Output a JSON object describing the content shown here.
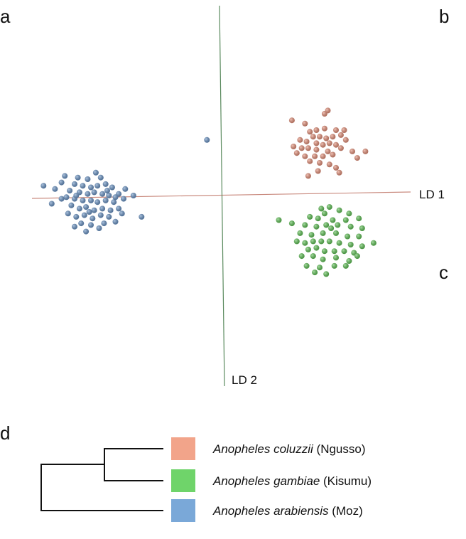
{
  "panel_labels": {
    "a": "a",
    "b": "b",
    "c": "c",
    "d": "d"
  },
  "chart_data": [
    {
      "type": "scatter",
      "xlabel": "LD 1",
      "ylabel": "LD 2",
      "xlim": [
        -11,
        11.5
      ],
      "ylim": [
        -11,
        11.5
      ],
      "grid": false,
      "axis_colors": {
        "ld1": "#c98a7e",
        "ld2": "#5a8a5e"
      },
      "series": [
        {
          "color": "#e8917a",
          "points": [
            [
              5.4,
              3.9
            ],
            [
              5.8,
              4.0
            ],
            [
              6.3,
              4.1
            ],
            [
              7.0,
              4.0
            ],
            [
              7.5,
              4.0
            ],
            [
              5.6,
              3.6
            ],
            [
              6.0,
              3.6
            ],
            [
              6.4,
              3.5
            ],
            [
              6.8,
              3.6
            ],
            [
              7.3,
              3.7
            ],
            [
              4.8,
              3.4
            ],
            [
              5.2,
              3.3
            ],
            [
              5.8,
              3.2
            ],
            [
              6.2,
              3.1
            ],
            [
              6.6,
              3.2
            ],
            [
              7.0,
              3.1
            ],
            [
              4.4,
              3.0
            ],
            [
              4.9,
              2.9
            ],
            [
              5.3,
              2.9
            ],
            [
              5.8,
              2.8
            ],
            [
              6.5,
              2.7
            ],
            [
              7.3,
              2.9
            ],
            [
              4.6,
              2.6
            ],
            [
              5.1,
              2.4
            ],
            [
              5.7,
              2.4
            ],
            [
              6.2,
              2.4
            ],
            [
              6.8,
              2.5
            ],
            [
              5.4,
              2.1
            ],
            [
              6.0,
              2.0
            ],
            [
              6.6,
              1.9
            ],
            [
              7.0,
              1.7
            ],
            [
              8.0,
              2.7
            ],
            [
              8.8,
              2.7
            ],
            [
              5.9,
              1.5
            ],
            [
              6.3,
              5.0
            ],
            [
              5.1,
              4.4
            ],
            [
              7.2,
              1.4
            ],
            [
              4.3,
              4.6
            ],
            [
              6.5,
              5.2
            ],
            [
              7.6,
              3.4
            ],
            [
              8.3,
              2.3
            ],
            [
              5.3,
              1.2
            ]
          ]
        },
        {
          "color": "#5fc455",
          "points": [
            [
              6.1,
              -0.8
            ],
            [
              6.6,
              -0.7
            ],
            [
              6.3,
              -1.1
            ],
            [
              7.2,
              -0.9
            ],
            [
              7.8,
              -1.1
            ],
            [
              5.4,
              -1.3
            ],
            [
              5.9,
              -1.4
            ],
            [
              6.8,
              -1.5
            ],
            [
              7.6,
              -1.5
            ],
            [
              8.4,
              -1.4
            ],
            [
              4.3,
              -1.7
            ],
            [
              5.1,
              -1.8
            ],
            [
              5.8,
              -1.9
            ],
            [
              6.4,
              -1.8
            ],
            [
              7.1,
              -1.8
            ],
            [
              7.9,
              -1.9
            ],
            [
              8.6,
              -2.0
            ],
            [
              4.8,
              -2.3
            ],
            [
              5.5,
              -2.4
            ],
            [
              6.2,
              -2.3
            ],
            [
              7.0,
              -2.3
            ],
            [
              7.7,
              -2.5
            ],
            [
              8.4,
              -2.5
            ],
            [
              4.6,
              -2.8
            ],
            [
              5.1,
              -2.9
            ],
            [
              5.6,
              -2.8
            ],
            [
              6.1,
              -2.8
            ],
            [
              6.6,
              -2.8
            ],
            [
              7.2,
              -2.9
            ],
            [
              7.9,
              -3.0
            ],
            [
              9.3,
              -2.9
            ],
            [
              5.3,
              -3.3
            ],
            [
              5.8,
              -3.2
            ],
            [
              6.3,
              -3.4
            ],
            [
              6.9,
              -3.4
            ],
            [
              7.5,
              -3.4
            ],
            [
              8.1,
              -3.5
            ],
            [
              4.9,
              -3.7
            ],
            [
              5.6,
              -3.7
            ],
            [
              6.2,
              -3.9
            ],
            [
              7.0,
              -3.8
            ],
            [
              7.8,
              -4.0
            ],
            [
              8.3,
              -3.7
            ],
            [
              5.2,
              -4.3
            ],
            [
              6.0,
              -4.4
            ],
            [
              6.9,
              -4.3
            ],
            [
              7.6,
              -4.3
            ],
            [
              6.4,
              -4.8
            ],
            [
              5.7,
              -4.7
            ],
            [
              3.5,
              -1.5
            ],
            [
              8.6,
              -3.1
            ],
            [
              6.7,
              -2.0
            ]
          ]
        },
        {
          "color": "#6a95c8",
          "points": [
            [
              -9.6,
              1.2
            ],
            [
              -8.8,
              1.1
            ],
            [
              -8.2,
              1.0
            ],
            [
              -7.4,
              1.1
            ],
            [
              -9.0,
              0.7
            ],
            [
              -8.5,
              0.6
            ],
            [
              -8.0,
              0.5
            ],
            [
              -7.6,
              0.6
            ],
            [
              -7.1,
              0.7
            ],
            [
              -6.7,
              0.5
            ],
            [
              -9.3,
              0.3
            ],
            [
              -8.7,
              0.2
            ],
            [
              -8.2,
              0.1
            ],
            [
              -7.8,
              0.2
            ],
            [
              -7.3,
              0.1
            ],
            [
              -6.9,
              0.0
            ],
            [
              -6.3,
              0.1
            ],
            [
              -10.2,
              0.4
            ],
            [
              -9.5,
              -0.1
            ],
            [
              -9.0,
              -0.2
            ],
            [
              -8.5,
              -0.3
            ],
            [
              -8.0,
              -0.3
            ],
            [
              -7.6,
              -0.4
            ],
            [
              -7.1,
              -0.3
            ],
            [
              -6.6,
              -0.4
            ],
            [
              -6.0,
              -0.2
            ],
            [
              -5.4,
              0.0
            ],
            [
              -10.4,
              -0.5
            ],
            [
              -9.2,
              -0.6
            ],
            [
              -8.7,
              -0.8
            ],
            [
              -8.3,
              -0.7
            ],
            [
              -7.8,
              -0.9
            ],
            [
              -7.3,
              -0.8
            ],
            [
              -6.8,
              -0.9
            ],
            [
              -6.3,
              -0.8
            ],
            [
              -9.4,
              -1.1
            ],
            [
              -8.9,
              -1.3
            ],
            [
              -8.4,
              -1.2
            ],
            [
              -7.9,
              -1.4
            ],
            [
              -7.4,
              -1.2
            ],
            [
              -6.9,
              -1.3
            ],
            [
              -8.6,
              -1.7
            ],
            [
              -8.0,
              -1.8
            ],
            [
              -7.2,
              -1.7
            ],
            [
              -6.5,
              -1.6
            ],
            [
              -10.9,
              0.6
            ],
            [
              -9.8,
              0.8
            ],
            [
              -7.7,
              1.4
            ],
            [
              -5.9,
              0.4
            ],
            [
              -6.1,
              -1.1
            ],
            [
              -8.3,
              -2.2
            ],
            [
              -9.0,
              -1.9
            ],
            [
              -7.5,
              -2.0
            ],
            [
              -4.9,
              -1.3
            ],
            [
              -0.9,
              3.4
            ],
            [
              -8.9,
              0.0
            ],
            [
              -7.0,
              0.3
            ],
            [
              -8.1,
              -1.0
            ],
            [
              -6.5,
              -0.1
            ],
            [
              -9.8,
              -0.2
            ]
          ]
        }
      ]
    },
    {
      "type": "diagram",
      "legend": [
        {
          "species": "Anopheles coluzzii",
          "strain": "(Ngusso)",
          "color": "#f2a48a"
        },
        {
          "species": "Anopheles gambiae",
          "strain": "(Kisumu)",
          "color": "#6fd46a"
        },
        {
          "species": "Anopheles arabiensis",
          "strain": "(Moz)",
          "color": "#7aa8d8"
        }
      ]
    }
  ]
}
